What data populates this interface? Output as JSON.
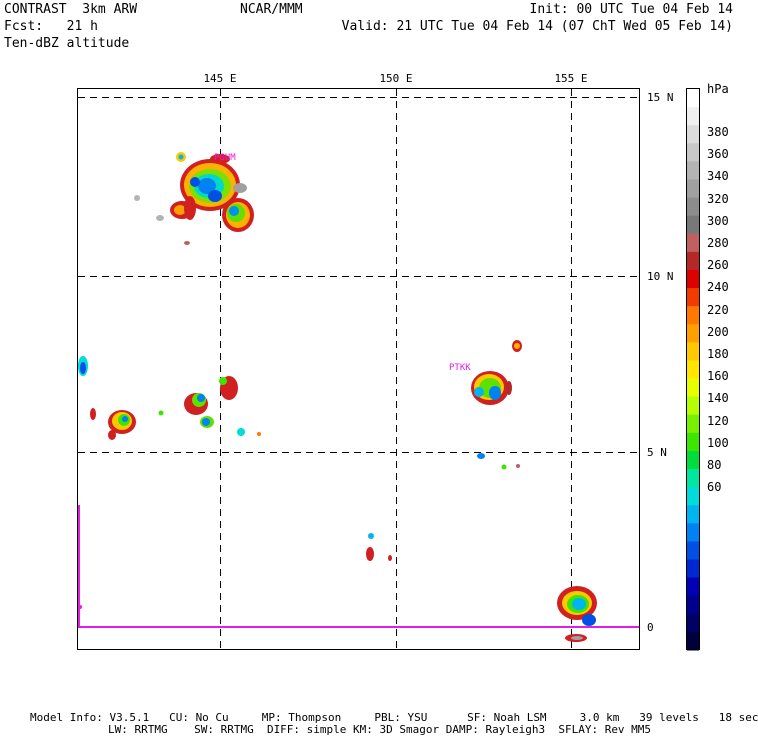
{
  "header": {
    "left_line1": "CONTRAST  3km ARW",
    "left_line2": "Fcst:   21 h",
    "left_line3": "Ten-dBZ altitude",
    "center": "NCAR/MMM",
    "right_line1": "Init: 00 UTC Tue 04 Feb 14",
    "right_line2": "Valid: 21 UTC Tue 04 Feb 14 (07 ChT Wed 05 Feb 14)"
  },
  "map": {
    "lon_ticks": [
      "145 E",
      "150 E",
      "155 E"
    ],
    "lat_ticks": [
      "15 N",
      "10 N",
      "5 N",
      "0"
    ],
    "station_labels": [
      "PTKK",
      "PGUM"
    ],
    "gridlines": "dashed",
    "boundary_color": "#e020e0"
  },
  "colorbar": {
    "unit": "hPa",
    "labels": [
      "380",
      "360",
      "340",
      "320",
      "300",
      "280",
      "260",
      "240",
      "220",
      "200",
      "180",
      "160",
      "140",
      "120",
      "100",
      "80",
      "60"
    ],
    "colors": [
      "#ffffff",
      "#f0f0f0",
      "#dcdcdc",
      "#c8c8c8",
      "#b4b4b4",
      "#a0a0a0",
      "#8c8c8c",
      "#787878",
      "#c06060",
      "#b42828",
      "#dc0000",
      "#f03c00",
      "#ff7800",
      "#ffa000",
      "#ffc800",
      "#ffe600",
      "#e6ff00",
      "#b4ff00",
      "#78f000",
      "#3ce600",
      "#00dc3c",
      "#00e6a0",
      "#00dcdc",
      "#00b4f0",
      "#0082f0",
      "#0050e6",
      "#0028d2",
      "#0000b4",
      "#00008c",
      "#000064",
      "#00003c"
    ]
  },
  "footer": {
    "line1": "Model Info: V3.5.1   CU: No Cu     MP: Thompson     PBL: YSU      SF: Noah LSM     3.0 km   39 levels   18 sec",
    "line2": "LW: RRTMG    SW: RRTMG  DIFF: simple KM: 3D Smagor DAMP: Rayleigh3  SFLAY: Rev MM5"
  }
}
